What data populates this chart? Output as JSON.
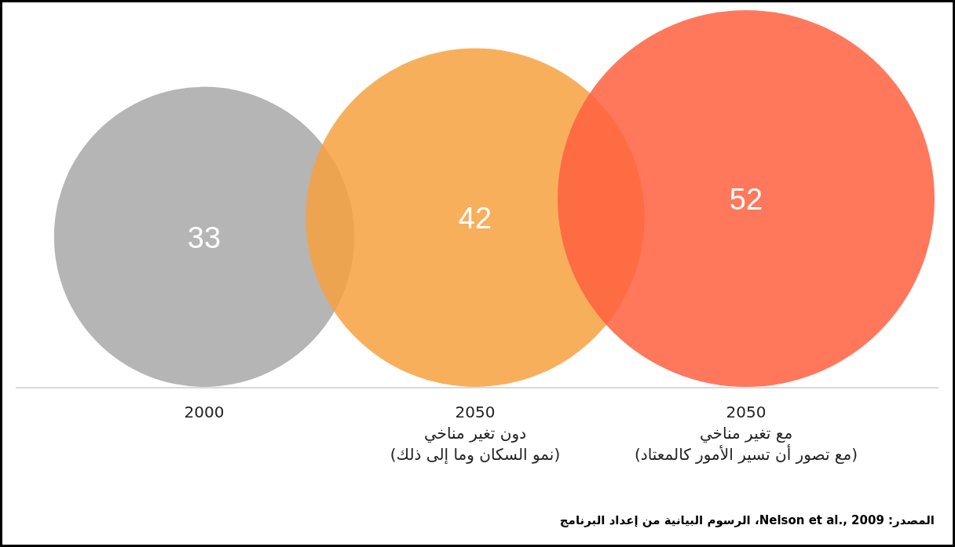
{
  "chart_data": {
    "type": "other",
    "categories": [
      "2000",
      "2050\nدون تغير مناخي\n(نمو السكان وما إلى ذلك)",
      "2050\nمع تغير مناخي\n(مع تصور أن تسير الأمور كالمعتاد)"
    ],
    "values": [
      33,
      42,
      52
    ],
    "colors": [
      "#a8a8a8",
      "#f7a13f",
      "#ff6040"
    ],
    "data_labels": true,
    "annotations": [
      "المصدر: Nelson et al., 2009، الرسوم البيانية من إعداد البرنامج"
    ]
  }
}
